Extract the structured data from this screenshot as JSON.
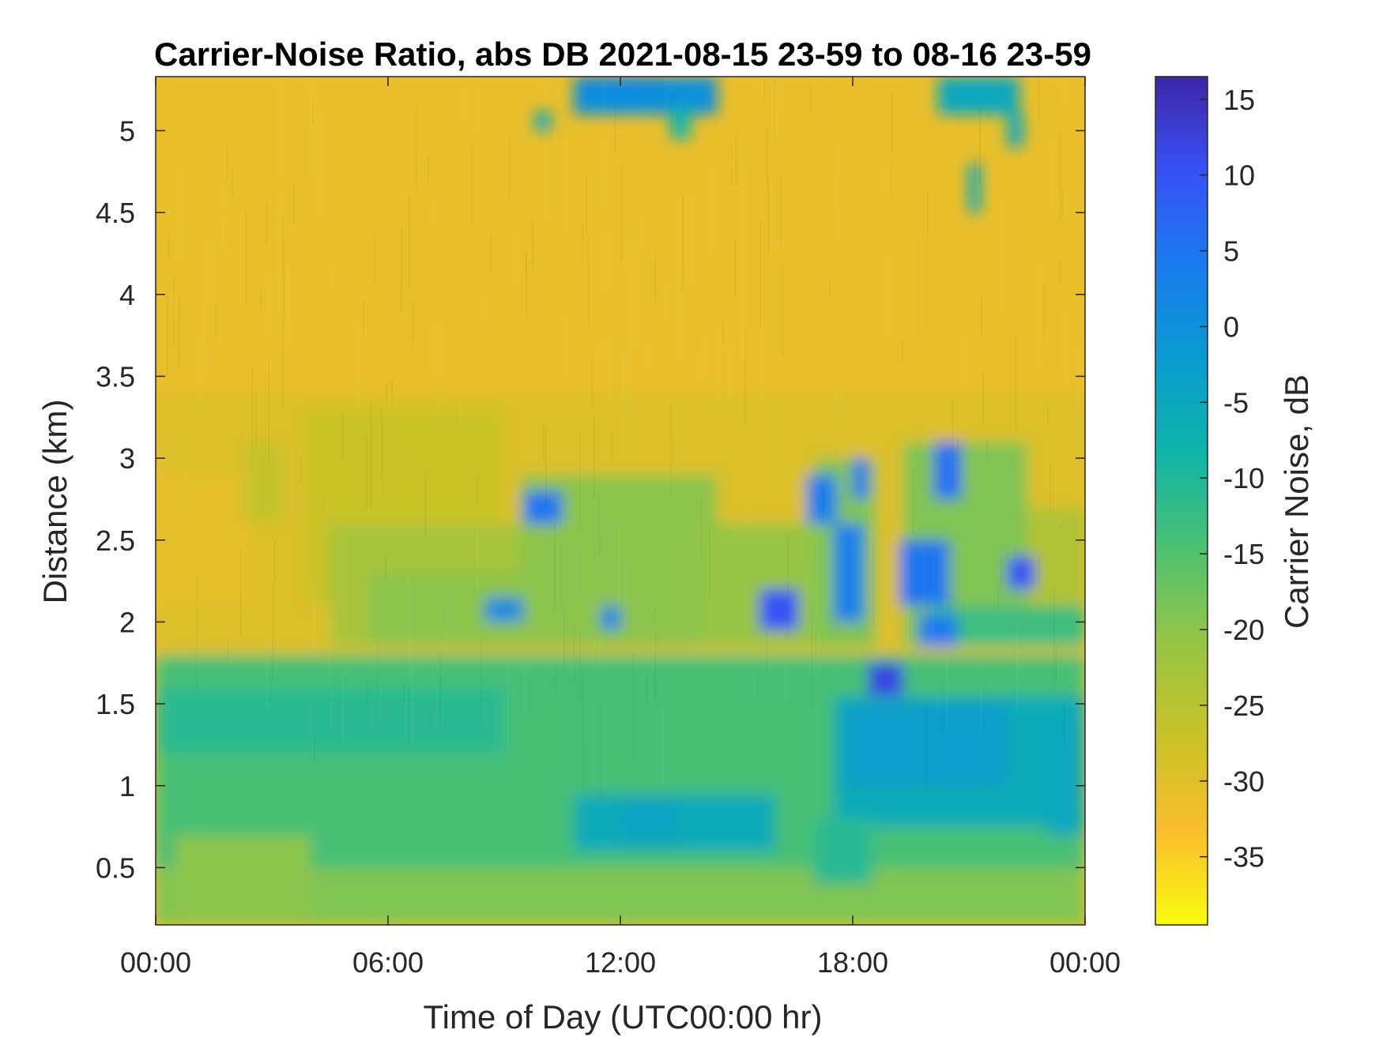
{
  "chart_data": {
    "type": "heatmap",
    "title": "Carrier-Noise Ratio, abs DB 2021-08-15 23-59 to 08-16 23-59",
    "xlabel": "Time of Day (UTC00:00 hr)",
    "ylabel": "Distance (km)",
    "colorbar_label": "Carrier Noise, dB",
    "x_ticks": [
      "00:00",
      "06:00",
      "12:00",
      "18:00",
      "00:00"
    ],
    "x_tick_hours": [
      0,
      6,
      12,
      18,
      24
    ],
    "xlim_hours": [
      0,
      24
    ],
    "y_ticks": [
      "0.5",
      "1",
      "1.5",
      "2",
      "2.5",
      "3",
      "3.5",
      "4",
      "4.5",
      "5"
    ],
    "y_tick_values": [
      0.5,
      1,
      1.5,
      2,
      2.5,
      3,
      3.5,
      4,
      4.5,
      5
    ],
    "ylim": [
      0.15,
      5.33
    ],
    "colorbar_ticks": [
      "15",
      "10",
      "5",
      "0",
      "-5",
      "-10",
      "-15",
      "-20",
      "-25",
      "-30",
      "-35"
    ],
    "colorbar_tick_values": [
      15,
      10,
      5,
      0,
      -5,
      -10,
      -15,
      -20,
      -25,
      -30,
      -35
    ],
    "clim": [
      -39.5,
      16.5
    ],
    "colormap": "parula",
    "colormap_stops": [
      "#f9fb0e",
      "#fbbe2d",
      "#c9c227",
      "#96c545",
      "#4cc171",
      "#0fb5a8",
      "#099bd0",
      "#1a7cef",
      "#3751f7",
      "#3e26a8"
    ],
    "background_value": -31,
    "regions": [
      {
        "x0": 0.0,
        "x1": 24.0,
        "y0": 1.8,
        "y1": 3.4,
        "value": -29.5
      },
      {
        "x0": 0.0,
        "x1": 2.5,
        "y0": 2.1,
        "y1": 2.9,
        "value": -30.5
      },
      {
        "x0": 2.3,
        "x1": 3.3,
        "y0": 2.6,
        "y1": 3.1,
        "value": -26.5
      },
      {
        "x0": 3.8,
        "x1": 9.0,
        "y0": 2.1,
        "y1": 3.3,
        "value": -27
      },
      {
        "x0": 4.5,
        "x1": 9.5,
        "y0": 1.85,
        "y1": 2.6,
        "value": -23
      },
      {
        "x0": 5.5,
        "x1": 9.5,
        "y0": 1.85,
        "y1": 2.3,
        "value": -20
      },
      {
        "x0": 9.4,
        "x1": 14.5,
        "y0": 1.85,
        "y1": 2.9,
        "value": -20
      },
      {
        "x0": 14.0,
        "x1": 17.0,
        "y0": 1.85,
        "y1": 2.6,
        "value": -21
      },
      {
        "x0": 17.0,
        "x1": 18.6,
        "y0": 1.85,
        "y1": 3.0,
        "value": -19
      },
      {
        "x0": 18.6,
        "x1": 19.3,
        "y0": 1.85,
        "y1": 2.0,
        "value": -30
      },
      {
        "x0": 19.3,
        "x1": 22.5,
        "y0": 1.85,
        "y1": 3.1,
        "value": -19
      },
      {
        "x0": 22.5,
        "x1": 24.0,
        "y0": 1.85,
        "y1": 2.7,
        "value": -24
      },
      {
        "x0": 20.0,
        "x1": 24.0,
        "y0": 1.85,
        "y1": 2.1,
        "value": -13
      },
      {
        "x0": 0.0,
        "x1": 24.0,
        "y0": 0.15,
        "y1": 1.8,
        "value": -14
      },
      {
        "x0": 0.0,
        "x1": 24.0,
        "y0": 0.15,
        "y1": 0.5,
        "value": -19
      },
      {
        "x0": 0.5,
        "x1": 4.0,
        "y0": 0.15,
        "y1": 0.7,
        "value": -20
      },
      {
        "x0": 0.0,
        "x1": 9.0,
        "y0": 1.2,
        "y1": 1.6,
        "value": -11
      },
      {
        "x0": 10.8,
        "x1": 16.0,
        "y0": 0.6,
        "y1": 0.95,
        "value": -6
      },
      {
        "x0": 12.0,
        "x1": 13.5,
        "y0": 0.7,
        "y1": 0.9,
        "value": -4
      },
      {
        "x0": 17.5,
        "x1": 24.0,
        "y0": 0.75,
        "y1": 1.55,
        "value": -6
      },
      {
        "x0": 17.8,
        "x1": 22.0,
        "y0": 1.0,
        "y1": 1.5,
        "value": -3
      },
      {
        "x0": 23.0,
        "x1": 24.0,
        "y0": 0.7,
        "y1": 1.4,
        "value": -5
      },
      {
        "x0": 17.0,
        "x1": 18.5,
        "y0": 0.4,
        "y1": 0.8,
        "value": -11
      },
      {
        "x0": 10.8,
        "x1": 14.5,
        "y0": 5.1,
        "y1": 5.33,
        "value": 0
      },
      {
        "x0": 11.0,
        "x1": 13.0,
        "y0": 5.25,
        "y1": 5.33,
        "value": 2
      },
      {
        "x0": 9.8,
        "x1": 10.2,
        "y0": 5.0,
        "y1": 5.12,
        "value": -5
      },
      {
        "x0": 13.3,
        "x1": 13.8,
        "y0": 4.95,
        "y1": 5.15,
        "value": -8
      },
      {
        "x0": 20.2,
        "x1": 22.3,
        "y0": 5.1,
        "y1": 5.33,
        "value": -5
      },
      {
        "x0": 21.0,
        "x1": 21.3,
        "y0": 4.5,
        "y1": 4.8,
        "value": -5
      },
      {
        "x0": 22.0,
        "x1": 22.4,
        "y0": 4.9,
        "y1": 5.1,
        "value": -5
      },
      {
        "x0": 9.5,
        "x1": 10.5,
        "y0": 2.6,
        "y1": 2.8,
        "value": 5
      },
      {
        "x0": 8.5,
        "x1": 9.5,
        "y0": 2.0,
        "y1": 2.15,
        "value": 1
      },
      {
        "x0": 11.5,
        "x1": 12.0,
        "y0": 1.95,
        "y1": 2.1,
        "value": 2
      },
      {
        "x0": 15.6,
        "x1": 16.6,
        "y0": 1.95,
        "y1": 2.2,
        "value": 10
      },
      {
        "x0": 17.5,
        "x1": 18.3,
        "y0": 2.0,
        "y1": 2.6,
        "value": 3
      },
      {
        "x0": 18.0,
        "x1": 18.4,
        "y0": 2.75,
        "y1": 3.0,
        "value": 5
      },
      {
        "x0": 16.8,
        "x1": 17.6,
        "y0": 2.6,
        "y1": 2.9,
        "value": 3
      },
      {
        "x0": 19.2,
        "x1": 20.5,
        "y0": 2.1,
        "y1": 2.5,
        "value": 5
      },
      {
        "x0": 20.1,
        "x1": 20.8,
        "y0": 2.75,
        "y1": 3.1,
        "value": 6
      },
      {
        "x0": 22.0,
        "x1": 22.7,
        "y0": 2.2,
        "y1": 2.4,
        "value": 10
      },
      {
        "x0": 18.4,
        "x1": 19.3,
        "y0": 1.55,
        "y1": 1.75,
        "value": 12
      },
      {
        "x0": 19.7,
        "x1": 20.7,
        "y0": 1.85,
        "y1": 2.05,
        "value": 4
      }
    ]
  }
}
